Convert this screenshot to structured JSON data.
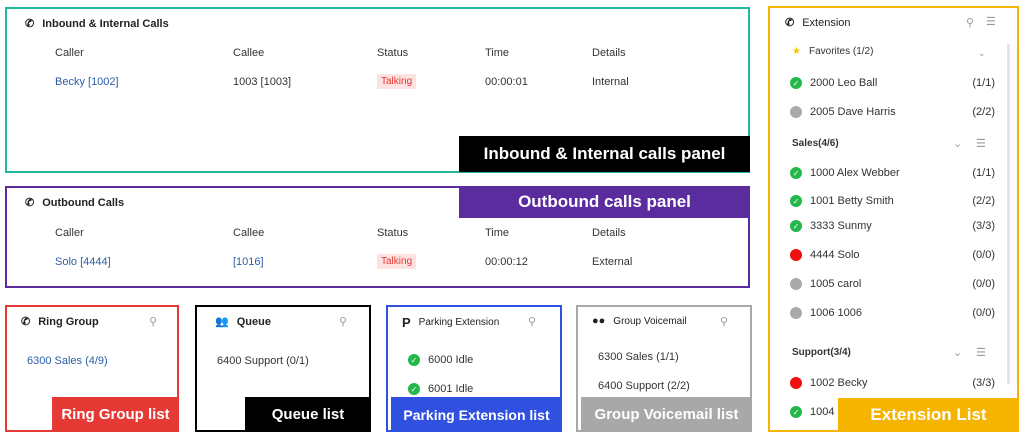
{
  "inbound": {
    "title": "Inbound & Internal Calls",
    "icon": "phone-icon",
    "headers": [
      "Caller",
      "Callee",
      "Status",
      "Time",
      "Details"
    ],
    "rows": [
      {
        "caller": "Becky [1002]",
        "callee": "1003 [1003]",
        "status": "Talking",
        "time": "00:00:01",
        "details": "Internal"
      }
    ],
    "label": "Inbound & Internal calls panel",
    "color": "#20b89a"
  },
  "outbound": {
    "title": "Outbound Calls",
    "icon": "phone-icon",
    "headers": [
      "Caller",
      "Callee",
      "Status",
      "Time",
      "Details"
    ],
    "rows": [
      {
        "caller": "Solo [4444]",
        "callee": "[1016]",
        "status": "Talking",
        "time": "00:00:12",
        "details": "External"
      }
    ],
    "label": "Outbound calls panel",
    "color": "#5b2c9e"
  },
  "ring_group": {
    "title": "Ring Group",
    "items": [
      "6300 Sales (4/9)"
    ],
    "label": "Ring Group list",
    "color": "#e53935"
  },
  "queue": {
    "title": "Queue",
    "items": [
      "6400 Support (0/1)"
    ],
    "label": "Queue list",
    "color": "#000000"
  },
  "parking": {
    "title": "Parking Extension",
    "items": [
      "6000 Idle",
      "6001 Idle"
    ],
    "label": "Parking Extension list",
    "color": "#3050e0"
  },
  "voicemail": {
    "title": "Group Voicemail",
    "items": [
      "6300 Sales (1/1)",
      "6400 Support (2/2)"
    ],
    "label": "Group Voicemail list",
    "color": "#a8a8a8"
  },
  "extension": {
    "title": "Extension",
    "label": "Extension List",
    "color": "#f5b400",
    "favorites": {
      "title": "Favorites (1/2)",
      "items": [
        {
          "name": "2000 Leo Ball",
          "count": "(1/1)",
          "status": "ok"
        },
        {
          "name": "2005 Dave Harris",
          "count": "(2/2)",
          "status": "off"
        }
      ]
    },
    "sales": {
      "title": "Sales(4/6)",
      "items": [
        {
          "name": "1000 Alex Webber",
          "count": "(1/1)",
          "status": "ok"
        },
        {
          "name": "1001 Betty Smith",
          "count": "(2/2)",
          "status": "ok"
        },
        {
          "name": "3333 Sunmy",
          "count": "(3/3)",
          "status": "ok"
        },
        {
          "name": "4444 Solo",
          "count": "(0/0)",
          "status": "busy"
        },
        {
          "name": "1005 carol",
          "count": "(0/0)",
          "status": "off"
        },
        {
          "name": "1006 1006",
          "count": "(0/0)",
          "status": "off"
        }
      ]
    },
    "support": {
      "title": "Support(3/4)",
      "items": [
        {
          "name": "1002 Becky",
          "count": "(3/3)",
          "status": "busy"
        },
        {
          "name": "1004",
          "count": "",
          "status": "ok"
        }
      ]
    }
  }
}
